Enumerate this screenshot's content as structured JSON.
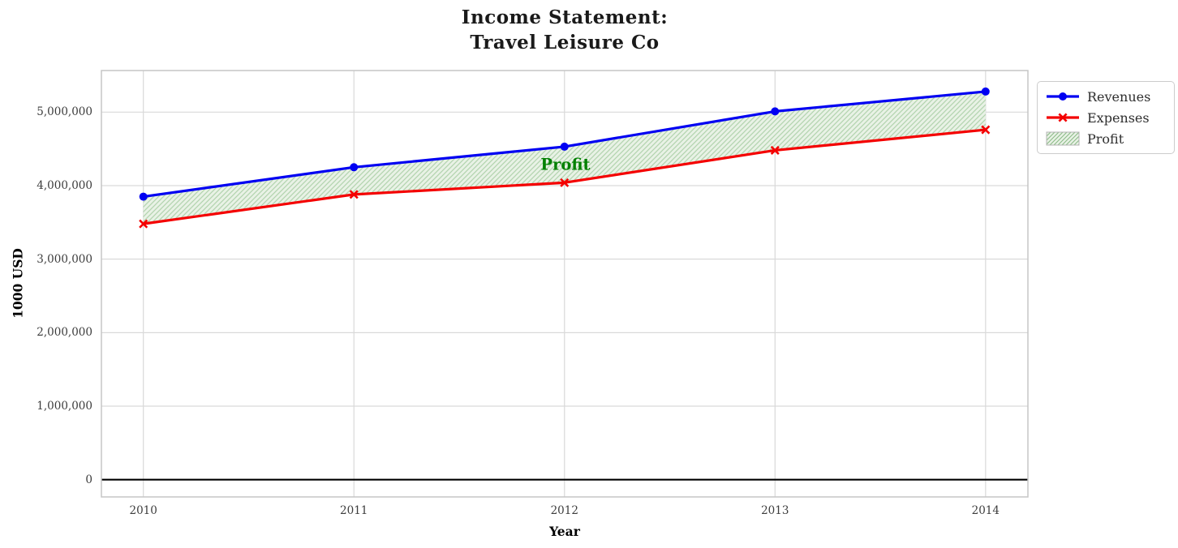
{
  "title": {
    "line1": "Income Statement:",
    "line2": "Travel Leisure Co"
  },
  "axes": {
    "xlabel": "Year",
    "ylabel": "1000 USD"
  },
  "annotation": {
    "text": "Profit",
    "color": "#008000"
  },
  "legend": {
    "position": "outside-upper-right",
    "items": [
      {
        "label": "Revenues"
      },
      {
        "label": "Expenses"
      },
      {
        "label": "Profit"
      }
    ]
  },
  "chart_data": {
    "type": "line",
    "title": "Income Statement: Travel Leisure Co",
    "xlabel": "Year",
    "ylabel": "1000 USD",
    "x": [
      2010,
      2011,
      2012,
      2013,
      2014
    ],
    "series": [
      {
        "name": "Revenues",
        "color": "#0000f2",
        "marker": "circle",
        "line_width": 3.2,
        "values": [
          3850000,
          4250000,
          4530000,
          5010000,
          5280000
        ]
      },
      {
        "name": "Expenses",
        "color": "#f40000",
        "marker": "x",
        "line_width": 3.2,
        "values": [
          3480000,
          3880000,
          4040000,
          4480000,
          4760000
        ]
      }
    ],
    "fill_between": {
      "label": "Profit",
      "between": [
        "Revenues",
        "Expenses"
      ],
      "facecolor": "#e9f2e6",
      "hatch": "///",
      "hatch_color": "#b2d4ae",
      "legend_hatch_color": "#8cbb88",
      "legend_edge_color": "#b4b4b4"
    },
    "annotation": {
      "text": "Profit",
      "x": 2012,
      "y": 4300000,
      "color": "#008000"
    },
    "baseline": {
      "y": 0,
      "color": "#000000"
    },
    "yticks": [
      0,
      1000000,
      2000000,
      3000000,
      4000000,
      5000000
    ],
    "ytick_labels": [
      "0",
      "1,000,000",
      "2,000,000",
      "3,000,000",
      "4,000,000",
      "5,000,000"
    ],
    "xtick_labels": [
      "2010",
      "2011",
      "2012",
      "2013",
      "2014"
    ],
    "ylim": [
      -230000,
      5565000
    ],
    "grid": true,
    "grid_color": "#d9d9d9",
    "spine_color": "#c6c6c6",
    "legend_position": "outside upper right"
  }
}
